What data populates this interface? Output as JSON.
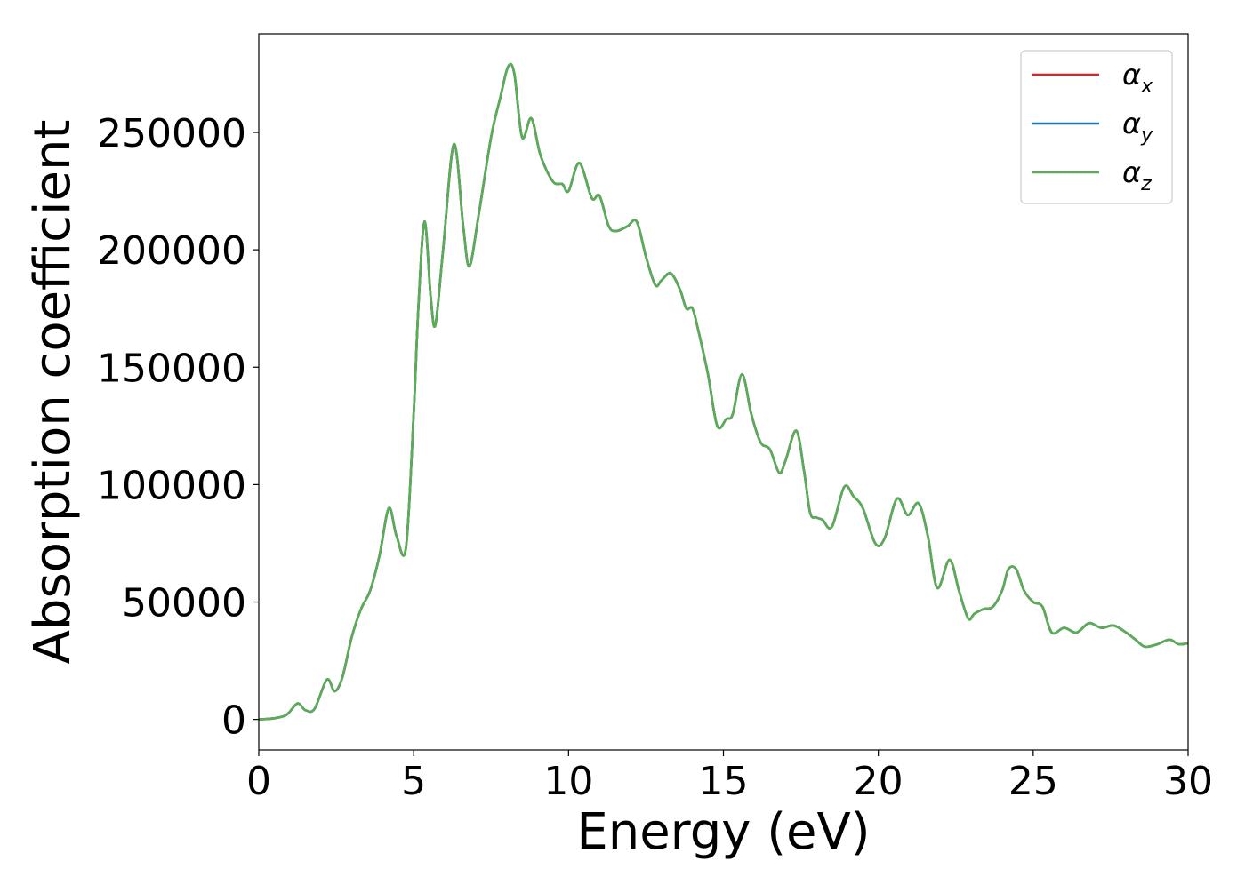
{
  "chart_data": {
    "type": "line",
    "title": "",
    "xlabel": "Energy (eV)",
    "ylabel": "Absorption coefficient",
    "xlim": [
      0,
      30
    ],
    "ylim": [
      -13000,
      292000
    ],
    "grid": false,
    "legend_placement": "top-right",
    "x_ticks": [
      0,
      5,
      10,
      15,
      20,
      25,
      30
    ],
    "x_tick_labels": [
      "0",
      "5",
      "10",
      "15",
      "20",
      "25",
      "30"
    ],
    "y_ticks": [
      0,
      50000,
      100000,
      150000,
      200000,
      250000
    ],
    "y_tick_labels": [
      "0",
      "50000",
      "100000",
      "150000",
      "200000",
      "250000"
    ],
    "x": [
      0,
      0.5,
      0.9,
      1.25,
      1.5,
      1.8,
      2.2,
      2.45,
      2.7,
      3.0,
      3.3,
      3.6,
      3.9,
      4.2,
      4.45,
      4.75,
      5.0,
      5.15,
      5.35,
      5.55,
      5.7,
      5.95,
      6.3,
      6.6,
      6.8,
      7.1,
      7.5,
      7.8,
      8.05,
      8.25,
      8.5,
      8.8,
      9.1,
      9.5,
      9.8,
      10.0,
      10.35,
      10.75,
      11.0,
      11.3,
      11.55,
      11.9,
      12.2,
      12.5,
      12.8,
      13.0,
      13.3,
      13.6,
      13.8,
      14.0,
      14.2,
      14.5,
      14.8,
      15.1,
      15.3,
      15.6,
      15.9,
      16.2,
      16.5,
      16.8,
      17.0,
      17.35,
      17.6,
      17.8,
      18.0,
      18.2,
      18.5,
      18.9,
      19.2,
      19.5,
      19.9,
      20.2,
      20.6,
      20.95,
      21.3,
      21.6,
      21.9,
      22.3,
      22.6,
      22.9,
      23.1,
      23.4,
      23.7,
      24.0,
      24.2,
      24.45,
      24.7,
      25.0,
      25.3,
      25.6,
      26.0,
      26.4,
      26.8,
      27.2,
      27.6,
      28.0,
      28.3,
      28.6,
      29.0,
      29.4,
      29.7,
      30.0
    ],
    "series": [
      {
        "name": "α_x",
        "color": "#d62728",
        "values": [
          0,
          500,
          2000,
          6800,
          4000,
          4500,
          17000,
          12000,
          18000,
          35000,
          47000,
          55000,
          70000,
          90000,
          78000,
          73000,
          130000,
          175000,
          212000,
          180000,
          168000,
          200000,
          245000,
          210000,
          193000,
          215000,
          248000,
          265000,
          278000,
          275000,
          248000,
          256000,
          240000,
          229000,
          228000,
          225000,
          237000,
          222000,
          223000,
          210000,
          208000,
          210000,
          212000,
          197000,
          185000,
          187000,
          190000,
          183000,
          175000,
          175000,
          165000,
          147000,
          125000,
          128000,
          130000,
          147000,
          130000,
          118000,
          115000,
          105000,
          110000,
          123000,
          106000,
          88000,
          86000,
          85000,
          82000,
          99000,
          95000,
          90000,
          75000,
          77000,
          94000,
          87000,
          92000,
          78000,
          56000,
          68000,
          55000,
          43000,
          45000,
          47000,
          48000,
          55000,
          64000,
          64000,
          55000,
          50000,
          48000,
          37000,
          39000,
          37000,
          41000,
          39000,
          40000,
          37000,
          34000,
          31000,
          32000,
          34000,
          32000,
          32500
        ]
      },
      {
        "name": "α_y",
        "color": "#1f77b4",
        "values": [
          0,
          500,
          2000,
          6800,
          4000,
          4500,
          17000,
          12000,
          18000,
          35000,
          47000,
          55000,
          70000,
          90000,
          78000,
          73000,
          130000,
          175000,
          212000,
          180000,
          168000,
          200000,
          245000,
          210000,
          193000,
          215000,
          248000,
          265000,
          278000,
          275000,
          248000,
          256000,
          240000,
          229000,
          228000,
          225000,
          237000,
          222000,
          223000,
          210000,
          208000,
          210000,
          212000,
          197000,
          185000,
          187000,
          190000,
          183000,
          175000,
          175000,
          165000,
          147000,
          125000,
          128000,
          130000,
          147000,
          130000,
          118000,
          115000,
          105000,
          110000,
          123000,
          106000,
          88000,
          86000,
          85000,
          82000,
          99000,
          95000,
          90000,
          75000,
          77000,
          94000,
          87000,
          92000,
          78000,
          56000,
          68000,
          55000,
          43000,
          45000,
          47000,
          48000,
          55000,
          64000,
          64000,
          55000,
          50000,
          48000,
          37000,
          39000,
          37000,
          41000,
          39000,
          40000,
          37000,
          34000,
          31000,
          32000,
          34000,
          32000,
          32500
        ]
      },
      {
        "name": "α_z",
        "color": "#5aad55",
        "values": [
          0,
          500,
          2000,
          6800,
          4000,
          4500,
          17000,
          12000,
          18000,
          35000,
          47000,
          55000,
          70000,
          90000,
          78000,
          73000,
          130000,
          175000,
          212000,
          180000,
          168000,
          200000,
          245000,
          210000,
          193000,
          215000,
          248000,
          265000,
          278000,
          275000,
          248000,
          256000,
          240000,
          229000,
          228000,
          225000,
          237000,
          222000,
          223000,
          210000,
          208000,
          210000,
          212000,
          197000,
          185000,
          187000,
          190000,
          183000,
          175000,
          175000,
          165000,
          147000,
          125000,
          128000,
          130000,
          147000,
          130000,
          118000,
          115000,
          105000,
          110000,
          123000,
          106000,
          88000,
          86000,
          85000,
          82000,
          99000,
          95000,
          90000,
          75000,
          77000,
          94000,
          87000,
          92000,
          78000,
          56000,
          68000,
          55000,
          43000,
          45000,
          47000,
          48000,
          55000,
          64000,
          64000,
          55000,
          50000,
          48000,
          37000,
          39000,
          37000,
          41000,
          39000,
          40000,
          37000,
          34000,
          31000,
          32000,
          34000,
          32000,
          32500
        ]
      }
    ]
  }
}
